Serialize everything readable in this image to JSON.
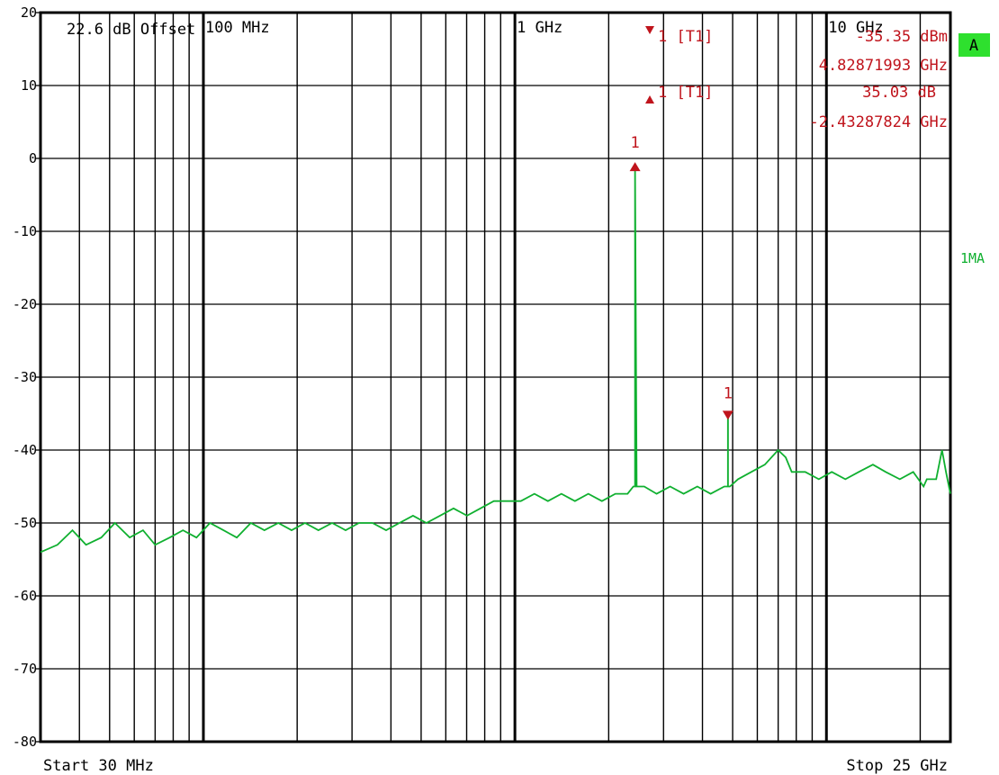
{
  "chart_data": {
    "type": "line",
    "x_scale": "log",
    "x_unit": "Hz",
    "xlim": [
      30000000,
      25000000000
    ],
    "ylim": [
      -80,
      20
    ],
    "y_ticks": [
      20,
      10,
      0,
      -10,
      -20,
      -30,
      -40,
      -50,
      -60,
      -70,
      -80
    ],
    "y_tick_labels": [
      "20",
      "10",
      "0",
      "-10",
      "-20",
      "-30",
      "-40",
      "-50",
      "-60",
      "-70",
      "-80"
    ],
    "decade_labels": [
      {
        "x": 100000000,
        "label": "100 MHz"
      },
      {
        "x": 1000000000,
        "label": "1 GHz"
      },
      {
        "x": 10000000000,
        "label": "10 GHz"
      }
    ],
    "grid": true,
    "start_label": "Start 30 MHz",
    "stop_label": "Stop 25 GHz",
    "offset_label": "22.6 dB Offset",
    "trace_label": "1MA",
    "indicator_label": "A",
    "colors": {
      "trace": "#10b030",
      "marker": "#c0141c",
      "grid": "#000000",
      "indicator_bg": "#2ee02e"
    },
    "markers": [
      {
        "name": "1",
        "type": "delta-up",
        "x": 2430000000,
        "y": -1
      },
      {
        "name": "1",
        "type": "down",
        "x": 4828719930,
        "y": -35.35
      }
    ],
    "marker_readouts": [
      {
        "symbol": "down",
        "label": "1 [T1]",
        "value": "-35.35 dBm",
        "freq": "4.82871993 GHz"
      },
      {
        "symbol": "up",
        "label": "1 [T1]",
        "value": "35.03 dB",
        "freq": "-2.43287824 GHz"
      }
    ],
    "series": [
      {
        "x": [
          30000000,
          34000000,
          38000000,
          42000000,
          47000000,
          52000000,
          58000000,
          64000000,
          70000000,
          78000000,
          86000000,
          95000000,
          105000000,
          116000000,
          128000000,
          142000000,
          157000000,
          174000000,
          192000000,
          212000000,
          234000000,
          259000000,
          286000000,
          316000000,
          349000000,
          386000000,
          426000000,
          471000000,
          520000000,
          575000000,
          635000000,
          702000000,
          775000000,
          856000000,
          946000000,
          1045000000,
          1155000000,
          1276000000,
          1410000000,
          1558000000,
          1721000000,
          1902000000,
          2101000000,
          2300000000,
          2400000000,
          2430000000,
          2430000000,
          2460000000,
          2600000000,
          2850000000,
          3150000000,
          3480000000,
          3850000000,
          4250000000,
          4700000000,
          4828000000,
          4828000000,
          4830000000,
          4830000000,
          4900000000,
          5200000000,
          5740000000,
          6340000000,
          7000000000,
          7400000000,
          7740000000,
          8550000000,
          9450000000,
          10400000000,
          11500000000,
          12700000000,
          14100000000,
          15500000000,
          17200000000,
          19000000000,
          20500000000,
          21000000000,
          22500000000,
          23500000000,
          24200000000,
          25000000000
        ],
        "y": [
          -54,
          -53,
          -51,
          -53,
          -52,
          -50,
          -52,
          -51,
          -53,
          -52,
          -51,
          -52,
          -50,
          -51,
          -52,
          -50,
          -51,
          -50,
          -51,
          -50,
          -51,
          -50,
          -51,
          -50,
          -50,
          -51,
          -50,
          -49,
          -50,
          -49,
          -48,
          -49,
          -48,
          -47,
          -47,
          -47,
          -46,
          -47,
          -46,
          -47,
          -46,
          -47,
          -46,
          -46,
          -45,
          -45,
          -1,
          -45,
          -45,
          -46,
          -45,
          -46,
          -45,
          -46,
          -45,
          -45,
          -35,
          -35,
          -45,
          -45,
          -44,
          -43,
          -42,
          -40,
          -41,
          -43,
          -43,
          -44,
          -43,
          -44,
          -43,
          -42,
          -43,
          -44,
          -43,
          -45,
          -44,
          -44,
          -40,
          -43,
          -46
        ]
      }
    ]
  }
}
